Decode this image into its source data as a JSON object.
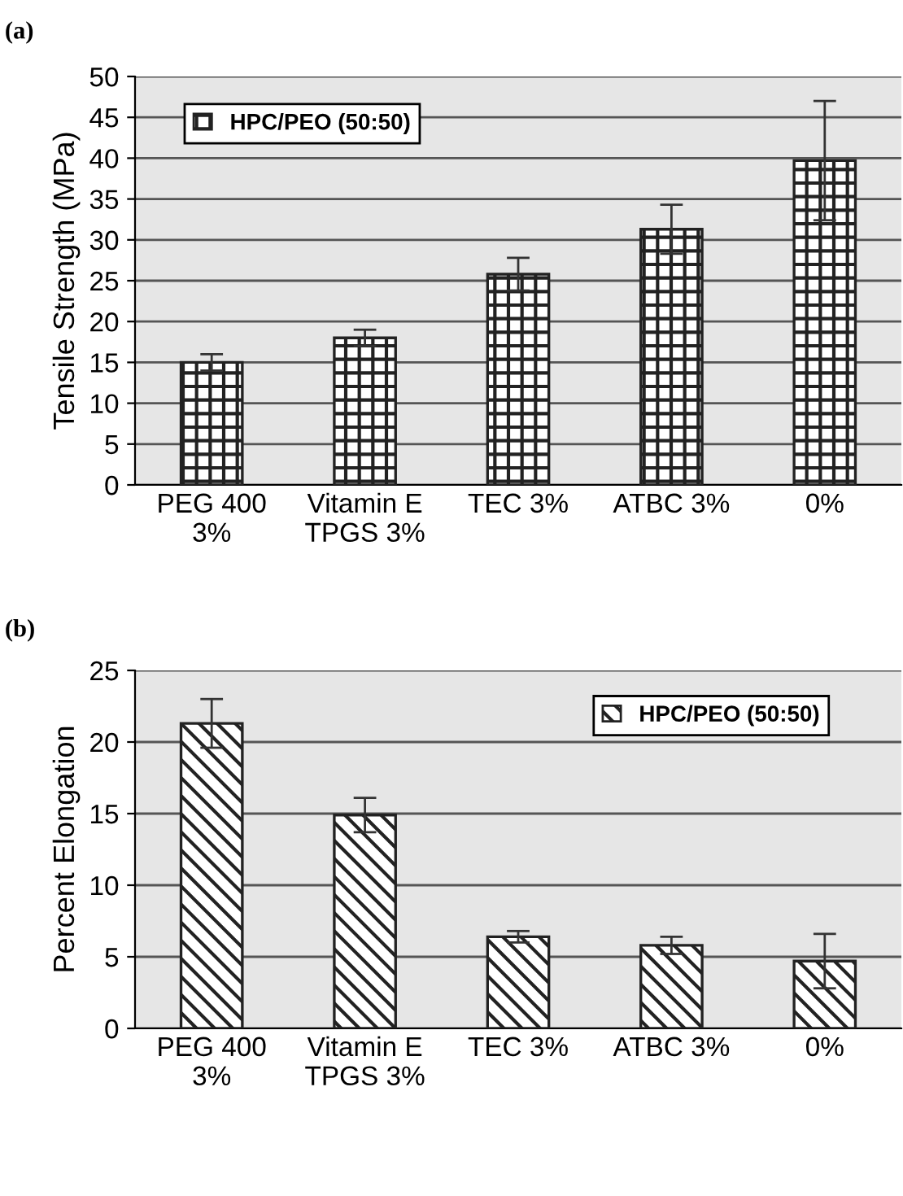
{
  "chart_data": [
    {
      "type": "bar",
      "title": "(a)",
      "ylabel": "Tensile Strength (MPa)",
      "categories": [
        "PEG 400\n3%",
        "Vitamin E\nTPGS 3%",
        "TEC 3%",
        "ATBC 3%",
        "0%"
      ],
      "series": [
        {
          "name": "HPC/PEO (50:50)",
          "color": "#222222",
          "values": [
            15,
            18,
            25.8,
            31.3,
            39.7
          ],
          "errors": [
            1,
            1,
            2,
            3,
            7.3
          ]
        }
      ],
      "ylim": [
        0,
        50
      ],
      "yticks": [
        0,
        5,
        10,
        15,
        20,
        25,
        30,
        35,
        40,
        45,
        50
      ],
      "grid": "y",
      "legend": "top left"
    },
    {
      "type": "bar",
      "title": "(b)",
      "ylabel": "Percent Elongation",
      "categories": [
        "PEG 400\n3%",
        "Vitamin E\nTPGS 3%",
        "TEC 3%",
        "ATBC 3%",
        "0%"
      ],
      "series": [
        {
          "name": "HPC/PEO (50:50)",
          "color": "#222222",
          "values": [
            21.3,
            14.9,
            6.4,
            5.8,
            4.7
          ],
          "errors": [
            1.7,
            1.2,
            0.4,
            0.6,
            1.9
          ]
        }
      ],
      "ylim": [
        0,
        25
      ],
      "yticks": [
        0,
        5,
        10,
        15,
        20,
        25
      ],
      "grid": "y",
      "legend": "top right"
    }
  ]
}
